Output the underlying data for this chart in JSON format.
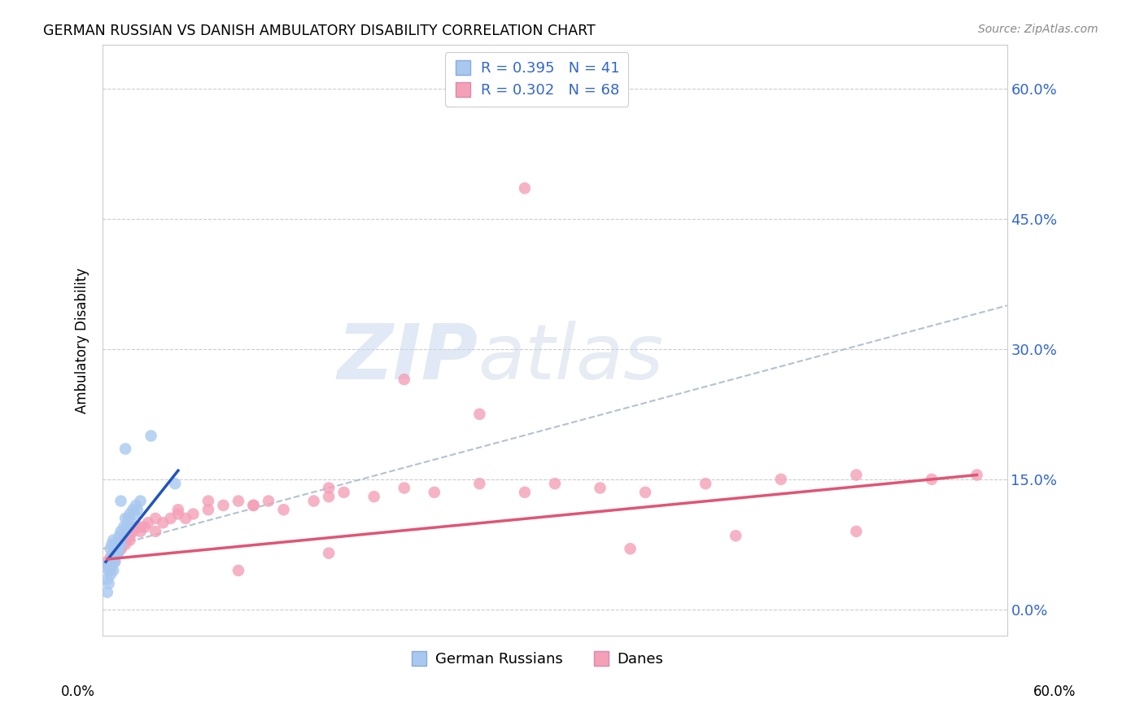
{
  "title": "GERMAN RUSSIAN VS DANISH AMBULATORY DISABILITY CORRELATION CHART",
  "source": "Source: ZipAtlas.com",
  "ylabel": "Ambulatory Disability",
  "ytick_vals": [
    0.0,
    15.0,
    30.0,
    45.0,
    60.0
  ],
  "xlim": [
    0,
    60
  ],
  "ylim": [
    -3,
    65
  ],
  "legend_r1": "R = 0.395",
  "legend_n1": "N = 41",
  "legend_r2": "R = 0.302",
  "legend_n2": "N = 68",
  "color_blue": "#A8C8F0",
  "color_pink": "#F4A0B8",
  "color_blue_line": "#2255BB",
  "color_pink_line": "#E05575",
  "color_blue_text": "#3366CC",
  "color_dash": "#AABBCC",
  "color_grid": "#CCCCCC",
  "background": "#FFFFFF",
  "watermark_zip": "ZIP",
  "watermark_atlas": "atlas",
  "german_russian_x": [
    0.2,
    0.3,
    0.4,
    0.5,
    0.5,
    0.6,
    0.6,
    0.7,
    0.7,
    0.8,
    0.8,
    0.9,
    1.0,
    1.0,
    1.1,
    1.2,
    1.2,
    1.3,
    1.4,
    1.5,
    1.5,
    1.6,
    1.7,
    1.8,
    1.9,
    2.0,
    2.1,
    2.2,
    2.3,
    2.5,
    0.3,
    0.4,
    0.5,
    0.6,
    0.7,
    0.8,
    1.0,
    1.2,
    1.5,
    3.2,
    4.8
  ],
  "german_russian_y": [
    5.0,
    3.5,
    4.5,
    5.5,
    7.0,
    6.0,
    7.5,
    6.5,
    8.0,
    5.5,
    7.5,
    7.0,
    6.5,
    8.0,
    8.5,
    7.5,
    9.0,
    8.5,
    9.5,
    9.0,
    10.5,
    9.5,
    10.5,
    11.0,
    10.0,
    11.5,
    11.0,
    12.0,
    11.5,
    12.5,
    2.0,
    3.0,
    4.0,
    5.0,
    4.5,
    6.0,
    7.0,
    12.5,
    18.5,
    20.0,
    14.5
  ],
  "danes_x": [
    0.3,
    0.4,
    0.5,
    0.6,
    0.7,
    0.8,
    0.9,
    1.0,
    1.1,
    1.2,
    1.3,
    1.4,
    1.5,
    1.6,
    1.7,
    1.8,
    2.0,
    2.2,
    2.5,
    2.8,
    3.0,
    3.5,
    4.0,
    4.5,
    5.0,
    5.5,
    6.0,
    7.0,
    8.0,
    9.0,
    10.0,
    11.0,
    12.0,
    14.0,
    15.0,
    16.0,
    18.0,
    20.0,
    22.0,
    25.0,
    28.0,
    30.0,
    33.0,
    36.0,
    40.0,
    45.0,
    50.0,
    55.0,
    58.0,
    0.5,
    0.8,
    1.2,
    1.8,
    2.5,
    3.5,
    5.0,
    7.0,
    10.0,
    15.0,
    20.0,
    25.0,
    35.0,
    42.0,
    50.0,
    28.0,
    15.0,
    9.0
  ],
  "danes_y": [
    5.5,
    5.0,
    6.0,
    5.5,
    6.5,
    6.0,
    7.0,
    6.5,
    7.5,
    7.0,
    7.5,
    8.0,
    7.5,
    8.0,
    8.5,
    8.0,
    9.0,
    9.5,
    9.0,
    9.5,
    10.0,
    10.5,
    10.0,
    10.5,
    11.0,
    10.5,
    11.0,
    11.5,
    12.0,
    12.5,
    12.0,
    12.5,
    11.5,
    12.5,
    13.0,
    13.5,
    13.0,
    14.0,
    13.5,
    14.5,
    13.5,
    14.5,
    14.0,
    13.5,
    14.5,
    15.0,
    15.5,
    15.0,
    15.5,
    4.5,
    5.5,
    7.0,
    8.5,
    9.5,
    9.0,
    11.5,
    12.5,
    12.0,
    14.0,
    26.5,
    22.5,
    7.0,
    8.5,
    9.0,
    48.5,
    6.5,
    4.5
  ],
  "blue_line_x0": 0.2,
  "blue_line_x1": 5.0,
  "blue_line_y0": 5.5,
  "blue_line_y1": 16.0,
  "pink_line_x0": 0.3,
  "pink_line_x1": 58.0,
  "pink_line_y0": 5.8,
  "pink_line_y1": 15.5,
  "dash_line_x0": 0.0,
  "dash_line_x1": 60.0,
  "dash_line_y0": 7.0,
  "dash_line_y1": 35.0
}
